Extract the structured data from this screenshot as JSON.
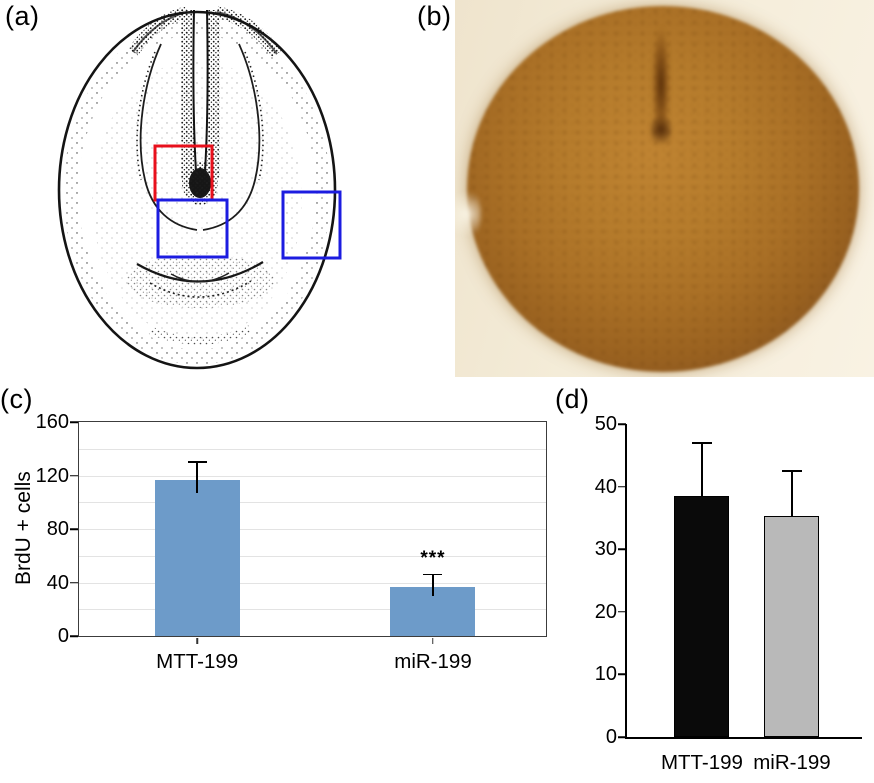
{
  "panels": {
    "a": "(a)",
    "b": "(b)",
    "c": "(c)",
    "d": "(d)"
  },
  "panel_a": {
    "boxes": [
      {
        "name": "red-roi",
        "color": "#e8101c"
      },
      {
        "name": "blue-roi-left",
        "color": "#1c1ce0"
      },
      {
        "name": "blue-roi-right",
        "color": "#1c1ce0"
      }
    ]
  },
  "panel_b": {
    "stain_color": "#a9701f",
    "background_color": "#f4ecd8"
  },
  "chart_data": [
    {
      "panel": "c",
      "type": "bar",
      "categories": [
        "MTT-199",
        "miR-199"
      ],
      "values": [
        117,
        37
      ],
      "errors_plus": [
        13,
        9
      ],
      "title": "",
      "xlabel": "",
      "ylabel": "BrdU + cells",
      "ylim": [
        0,
        160
      ],
      "yticks": [
        0,
        40,
        80,
        120,
        160
      ],
      "grid": true,
      "grid_step": 20,
      "legend": "none",
      "bar_colors": [
        "#6d9bc9",
        "#6d9bc9"
      ],
      "annotations": [
        {
          "text": "***",
          "category_index": 1
        }
      ]
    },
    {
      "panel": "d",
      "type": "bar",
      "categories": [
        "MTT-199",
        "miR-199"
      ],
      "values": [
        38.5,
        35.3
      ],
      "errors_plus": [
        8.5,
        7.2
      ],
      "title": "",
      "xlabel": "",
      "ylabel": "",
      "ylim": [
        0,
        50
      ],
      "yticks": [
        0,
        10,
        20,
        30,
        40,
        50
      ],
      "grid": false,
      "legend": "none",
      "bar_colors": [
        "#0a0a0a",
        "#b9b9b9"
      ],
      "annotations": []
    }
  ]
}
